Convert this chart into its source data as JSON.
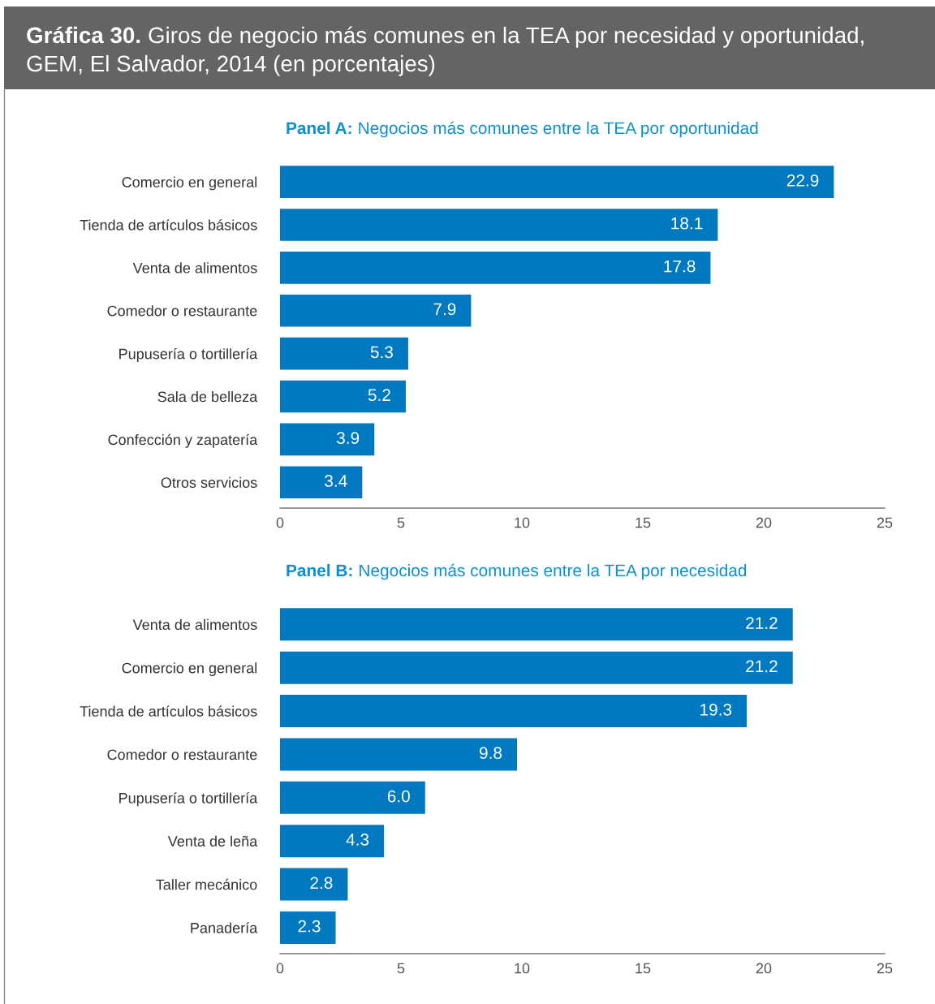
{
  "chart_data": [
    {
      "type": "bar",
      "orientation": "horizontal",
      "title": "Gráfica 30. Giros de negocio más comunes en la TEA por necesidad y oportunidad,\nGEM, El Salvador, 2014 (en porcentajes)",
      "subtitle": "Panel A: Negocios más comunes entre la TEA por oportunidad",
      "categories": [
        "Comercio en general",
        "Tienda de artículos básicos",
        "Venta de alimentos",
        "Comedor o restaurante",
        "Pupusería o tortillería",
        "Sala de belleza",
        "Confección y zapatería",
        "Otros servicios"
      ],
      "values": [
        22.9,
        18.1,
        17.8,
        7.9,
        5.3,
        5.2,
        3.9,
        3.4
      ],
      "value_labels": [
        "22.9",
        "18.1",
        "17.8",
        "7.9",
        "5.3",
        "5.2",
        "3.9",
        "3.4"
      ],
      "color": "#0079c1",
      "xlim": [
        0,
        25
      ],
      "xticks": [
        0,
        5,
        10,
        15,
        20,
        25
      ],
      "grid": false,
      "legend": false
    },
    {
      "type": "bar",
      "orientation": "horizontal",
      "subtitle": "Panel B: Negocios más comunes entre la TEA por necesidad",
      "categories": [
        "Venta de alimentos",
        "Comercio en general",
        "Tienda de artículos básicos",
        "Comedor o restaurante",
        "Pupusería o tortillería",
        "Venta de leña",
        "Taller mecánico",
        "Panadería"
      ],
      "values": [
        21.2,
        21.2,
        19.3,
        9.8,
        6.0,
        4.3,
        2.8,
        2.3
      ],
      "value_labels": [
        "21.2",
        "21.2",
        "19.3",
        "9.8",
        "6.0",
        "4.3",
        "2.8",
        "2.3"
      ],
      "color": "#0079c1",
      "xlim": [
        0,
        25
      ],
      "xticks": [
        0,
        5,
        10,
        15,
        20,
        25
      ],
      "grid": false,
      "legend": false
    }
  ]
}
